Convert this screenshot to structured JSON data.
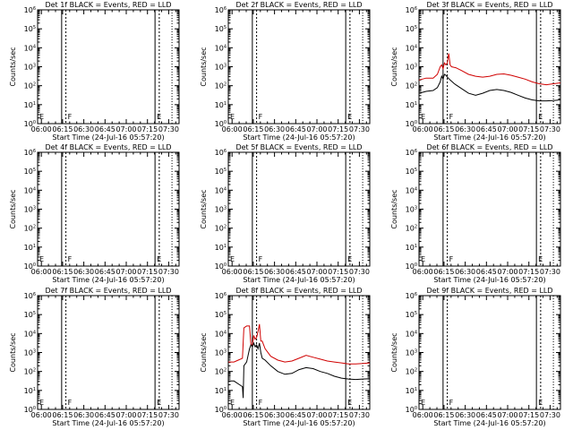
{
  "colors": {
    "events": "#000000",
    "lld": "#d00000",
    "axis": "#000000",
    "background": "#ffffff"
  },
  "common": {
    "y_axis_label": "Counts/sec",
    "x_axis_label": "Start Time (24-Jul-16 05:57:20)",
    "x_tick_labels": [
      "06:00",
      "06:15",
      "06:30",
      "06:45",
      "07:00",
      "07:15",
      "07:30"
    ],
    "y_tick_labels": [
      "10^0",
      "10^1",
      "10^2",
      "10^3",
      "10^4",
      "10^5",
      "10^6"
    ],
    "flag_F": "F",
    "flag_E": "E"
  },
  "chart_data": [
    {
      "type": "line",
      "title": "Det 1f BLACK = Events, RED = LLD",
      "x_unit": "minutes since 05:57:20",
      "xlim": [
        0,
        100
      ],
      "ylim_log10": [
        0,
        6
      ],
      "y_scale": "log",
      "markers": [
        {
          "minute": 17,
          "style": "solid"
        },
        {
          "minute": 20,
          "style": "dashed"
        },
        {
          "minute": 83,
          "style": "solid"
        },
        {
          "minute": 86,
          "style": "dashed"
        },
        {
          "minute": 95,
          "style": "dotted"
        }
      ],
      "flags": [
        {
          "label": "F",
          "minute": 20
        },
        {
          "label": "E",
          "minute": 83
        }
      ],
      "series": []
    },
    {
      "type": "line",
      "title": "Det 2f BLACK = Events, RED = LLD",
      "x_unit": "minutes since 05:57:20",
      "xlim": [
        0,
        100
      ],
      "ylim_log10": [
        0,
        6
      ],
      "y_scale": "log",
      "markers": [
        {
          "minute": 17,
          "style": "solid"
        },
        {
          "minute": 20,
          "style": "dashed"
        },
        {
          "minute": 83,
          "style": "solid"
        },
        {
          "minute": 86,
          "style": "dashed"
        },
        {
          "minute": 95,
          "style": "dotted"
        }
      ],
      "flags": [
        {
          "label": "F",
          "minute": 20
        },
        {
          "label": "E",
          "minute": 83
        }
      ],
      "series": []
    },
    {
      "type": "line",
      "title": "Det 3f BLACK = Events, RED = LLD",
      "x_unit": "minutes since 05:57:20",
      "xlim": [
        0,
        100
      ],
      "ylim_log10": [
        0,
        6
      ],
      "y_scale": "log",
      "markers": [
        {
          "minute": 17,
          "style": "solid"
        },
        {
          "minute": 20,
          "style": "dashed"
        },
        {
          "minute": 83,
          "style": "solid"
        },
        {
          "minute": 86,
          "style": "dashed"
        },
        {
          "minute": 95,
          "style": "dotted"
        }
      ],
      "flags": [
        {
          "label": "F",
          "minute": 20
        },
        {
          "label": "E",
          "minute": 83
        }
      ],
      "series": [
        {
          "color": "lld",
          "points": [
            [
              0,
              2.3
            ],
            [
              5,
              2.4
            ],
            [
              10,
              2.4
            ],
            [
              13,
              2.6
            ],
            [
              15,
              3.0
            ],
            [
              16,
              3.1
            ],
            [
              17,
              2.9
            ],
            [
              18,
              3.2
            ],
            [
              19,
              3.1
            ],
            [
              20,
              3.2
            ],
            [
              21,
              3.7
            ],
            [
              22,
              3.1
            ],
            [
              23,
              3.0
            ],
            [
              26,
              2.95
            ],
            [
              30,
              2.8
            ],
            [
              35,
              2.6
            ],
            [
              40,
              2.5
            ],
            [
              45,
              2.45
            ],
            [
              50,
              2.5
            ],
            [
              55,
              2.6
            ],
            [
              60,
              2.62
            ],
            [
              65,
              2.55
            ],
            [
              70,
              2.45
            ],
            [
              75,
              2.35
            ],
            [
              80,
              2.2
            ],
            [
              85,
              2.1
            ],
            [
              90,
              2.05
            ],
            [
              95,
              2.1
            ],
            [
              100,
              2.15
            ]
          ]
        },
        {
          "color": "events",
          "points": [
            [
              0,
              1.6
            ],
            [
              5,
              1.7
            ],
            [
              10,
              1.75
            ],
            [
              13,
              1.9
            ],
            [
              15,
              2.2
            ],
            [
              16,
              2.5
            ],
            [
              17,
              2.35
            ],
            [
              18,
              2.6
            ],
            [
              19,
              2.55
            ],
            [
              20,
              2.45
            ],
            [
              22,
              2.3
            ],
            [
              25,
              2.1
            ],
            [
              30,
              1.85
            ],
            [
              35,
              1.6
            ],
            [
              40,
              1.5
            ],
            [
              45,
              1.6
            ],
            [
              50,
              1.75
            ],
            [
              55,
              1.8
            ],
            [
              60,
              1.75
            ],
            [
              65,
              1.65
            ],
            [
              70,
              1.5
            ],
            [
              75,
              1.35
            ],
            [
              80,
              1.25
            ],
            [
              85,
              1.2
            ],
            [
              90,
              1.2
            ],
            [
              95,
              1.22
            ],
            [
              100,
              1.25
            ]
          ]
        }
      ]
    },
    {
      "type": "line",
      "title": "Det 4f BLACK = Events, RED = LLD",
      "x_unit": "minutes since 05:57:20",
      "xlim": [
        0,
        100
      ],
      "ylim_log10": [
        0,
        6
      ],
      "y_scale": "log",
      "markers": [
        {
          "minute": 17,
          "style": "solid"
        },
        {
          "minute": 20,
          "style": "dashed"
        },
        {
          "minute": 83,
          "style": "solid"
        },
        {
          "minute": 86,
          "style": "dashed"
        },
        {
          "minute": 95,
          "style": "dotted"
        }
      ],
      "flags": [
        {
          "label": "F",
          "minute": 20
        },
        {
          "label": "E",
          "minute": 83
        }
      ],
      "series": []
    },
    {
      "type": "line",
      "title": "Det 5f BLACK = Events, RED = LLD",
      "x_unit": "minutes since 05:57:20",
      "xlim": [
        0,
        100
      ],
      "ylim_log10": [
        0,
        6
      ],
      "y_scale": "log",
      "markers": [
        {
          "minute": 17,
          "style": "solid"
        },
        {
          "minute": 20,
          "style": "dashed"
        },
        {
          "minute": 83,
          "style": "solid"
        },
        {
          "minute": 86,
          "style": "dashed"
        },
        {
          "minute": 95,
          "style": "dotted"
        }
      ],
      "flags": [
        {
          "label": "F",
          "minute": 20
        },
        {
          "label": "E",
          "minute": 83
        }
      ],
      "series": []
    },
    {
      "type": "line",
      "title": "Det 6f BLACK = Events, RED = LLD",
      "x_unit": "minutes since 05:57:20",
      "xlim": [
        0,
        100
      ],
      "ylim_log10": [
        0,
        6
      ],
      "y_scale": "log",
      "markers": [
        {
          "minute": 17,
          "style": "solid"
        },
        {
          "minute": 20,
          "style": "dashed"
        },
        {
          "minute": 83,
          "style": "solid"
        },
        {
          "minute": 86,
          "style": "dashed"
        },
        {
          "minute": 95,
          "style": "dotted"
        }
      ],
      "flags": [
        {
          "label": "F",
          "minute": 20
        },
        {
          "label": "E",
          "minute": 83
        }
      ],
      "series": []
    },
    {
      "type": "line",
      "title": "Det 7f BLACK = Events, RED = LLD",
      "x_unit": "minutes since 05:57:20",
      "xlim": [
        0,
        100
      ],
      "ylim_log10": [
        0,
        6
      ],
      "y_scale": "log",
      "markers": [
        {
          "minute": 17,
          "style": "solid"
        },
        {
          "minute": 20,
          "style": "dashed"
        },
        {
          "minute": 83,
          "style": "solid"
        },
        {
          "minute": 86,
          "style": "dashed"
        },
        {
          "minute": 95,
          "style": "dotted"
        }
      ],
      "flags": [
        {
          "label": "F",
          "minute": 20
        },
        {
          "label": "E",
          "minute": 83
        }
      ],
      "series": []
    },
    {
      "type": "line",
      "title": "Det 8f BLACK = Events, RED = LLD",
      "x_unit": "minutes since 05:57:20",
      "xlim": [
        0,
        100
      ],
      "ylim_log10": [
        0,
        6
      ],
      "y_scale": "log",
      "markers": [
        {
          "minute": 17,
          "style": "solid"
        },
        {
          "minute": 20,
          "style": "dashed"
        },
        {
          "minute": 83,
          "style": "solid"
        },
        {
          "minute": 86,
          "style": "dashed"
        },
        {
          "minute": 95,
          "style": "dotted"
        }
      ],
      "flags": [
        {
          "label": "F",
          "minute": 20
        },
        {
          "label": "E",
          "minute": 83
        }
      ],
      "series": [
        {
          "color": "lld",
          "points": [
            [
              0,
              2.5
            ],
            [
              4,
              2.5
            ],
            [
              7,
              2.6
            ],
            [
              10,
              2.7
            ],
            [
              11,
              4.3
            ],
            [
              13,
              4.4
            ],
            [
              15,
              4.4
            ],
            [
              16,
              3.4
            ],
            [
              17,
              3.4
            ],
            [
              18,
              3.9
            ],
            [
              19,
              3.7
            ],
            [
              20,
              3.8
            ],
            [
              21,
              4.1
            ],
            [
              22,
              4.5
            ],
            [
              23,
              3.6
            ],
            [
              24,
              3.6
            ],
            [
              26,
              3.2
            ],
            [
              30,
              2.8
            ],
            [
              35,
              2.6
            ],
            [
              40,
              2.5
            ],
            [
              45,
              2.55
            ],
            [
              50,
              2.7
            ],
            [
              55,
              2.85
            ],
            [
              60,
              2.75
            ],
            [
              65,
              2.65
            ],
            [
              70,
              2.55
            ],
            [
              75,
              2.5
            ],
            [
              80,
              2.45
            ],
            [
              85,
              2.4
            ],
            [
              90,
              2.4
            ],
            [
              95,
              2.42
            ],
            [
              100,
              2.45
            ]
          ]
        },
        {
          "color": "events",
          "points": [
            [
              0,
              1.5
            ],
            [
              4,
              1.5
            ],
            [
              8,
              1.3
            ],
            [
              10,
              1.2
            ],
            [
              10.5,
              0.6
            ],
            [
              11,
              2.3
            ],
            [
              13,
              2.5
            ],
            [
              15,
              3.2
            ],
            [
              16,
              3.4
            ],
            [
              17,
              3.3
            ],
            [
              18,
              3.5
            ],
            [
              19,
              3.3
            ],
            [
              20,
              3.4
            ],
            [
              21,
              3.2
            ],
            [
              22,
              3.5
            ],
            [
              23,
              3.0
            ],
            [
              24,
              2.7
            ],
            [
              26,
              2.6
            ],
            [
              30,
              2.3
            ],
            [
              35,
              2.0
            ],
            [
              40,
              1.85
            ],
            [
              45,
              1.9
            ],
            [
              50,
              2.1
            ],
            [
              55,
              2.2
            ],
            [
              60,
              2.15
            ],
            [
              65,
              2.0
            ],
            [
              70,
              1.9
            ],
            [
              75,
              1.75
            ],
            [
              80,
              1.65
            ],
            [
              85,
              1.6
            ],
            [
              90,
              1.58
            ],
            [
              95,
              1.6
            ],
            [
              100,
              1.62
            ]
          ]
        }
      ]
    },
    {
      "type": "line",
      "title": "Det 9f BLACK = Events, RED = LLD",
      "x_unit": "minutes since 05:57:20",
      "xlim": [
        0,
        100
      ],
      "ylim_log10": [
        0,
        6
      ],
      "y_scale": "log",
      "markers": [
        {
          "minute": 17,
          "style": "solid"
        },
        {
          "minute": 20,
          "style": "dashed"
        },
        {
          "minute": 83,
          "style": "solid"
        },
        {
          "minute": 86,
          "style": "dashed"
        },
        {
          "minute": 95,
          "style": "dotted"
        }
      ],
      "flags": [
        {
          "label": "F",
          "minute": 20
        },
        {
          "label": "E",
          "minute": 83
        }
      ],
      "series": []
    }
  ]
}
